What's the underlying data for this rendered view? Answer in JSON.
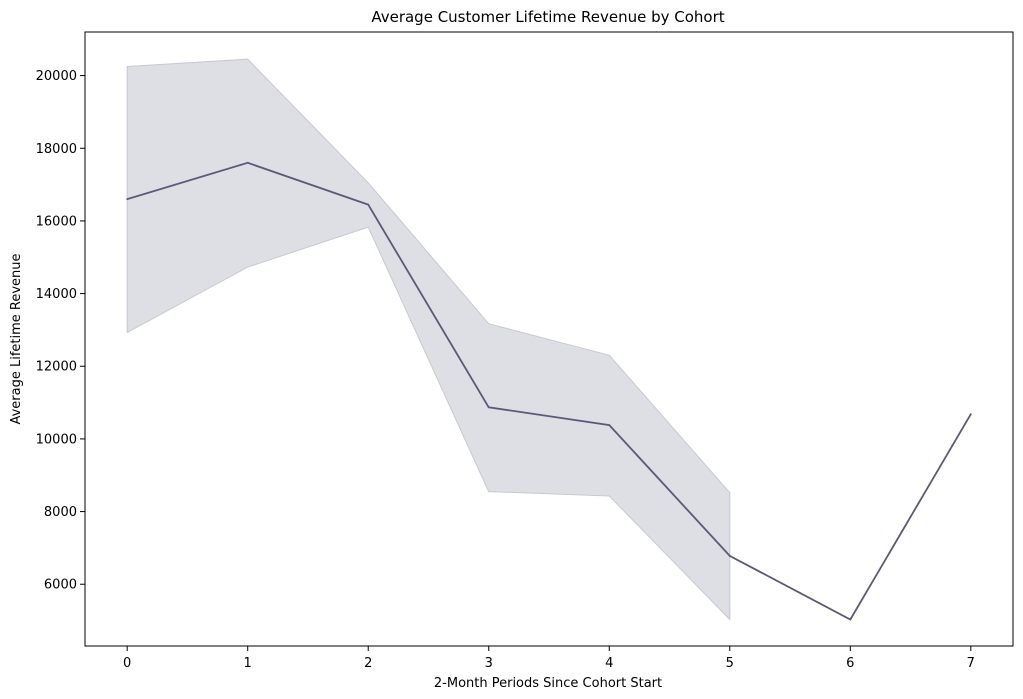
{
  "chart_data": {
    "type": "line",
    "title": "Average Customer Lifetime Revenue by Cohort",
    "xlabel": "2-Month Periods Since Cohort Start",
    "ylabel": "Average Lifetime Revenue",
    "xlim": [
      -0.35,
      7.35
    ],
    "ylim": [
      4300,
      21200
    ],
    "x_ticks": [
      0,
      1,
      2,
      3,
      4,
      5,
      6,
      7
    ],
    "y_ticks": [
      6000,
      8000,
      10000,
      12000,
      14000,
      16000,
      18000,
      20000
    ],
    "grid": false,
    "legend": "none",
    "series": [
      {
        "x": [
          0,
          1,
          2,
          3,
          4,
          5,
          6,
          7
        ],
        "values": [
          16600,
          17600,
          16450,
          10870,
          10380,
          6780,
          5030,
          10680
        ],
        "ci_lower": [
          12930,
          14730,
          15830,
          8550,
          8430,
          5030,
          null,
          null
        ],
        "ci_upper": [
          20250,
          20450,
          17050,
          13170,
          12300,
          8520,
          null,
          null
        ],
        "color": "#5a5a78",
        "band_color": "#dedee5",
        "band_edge_color": "#c8c8d4"
      }
    ]
  }
}
